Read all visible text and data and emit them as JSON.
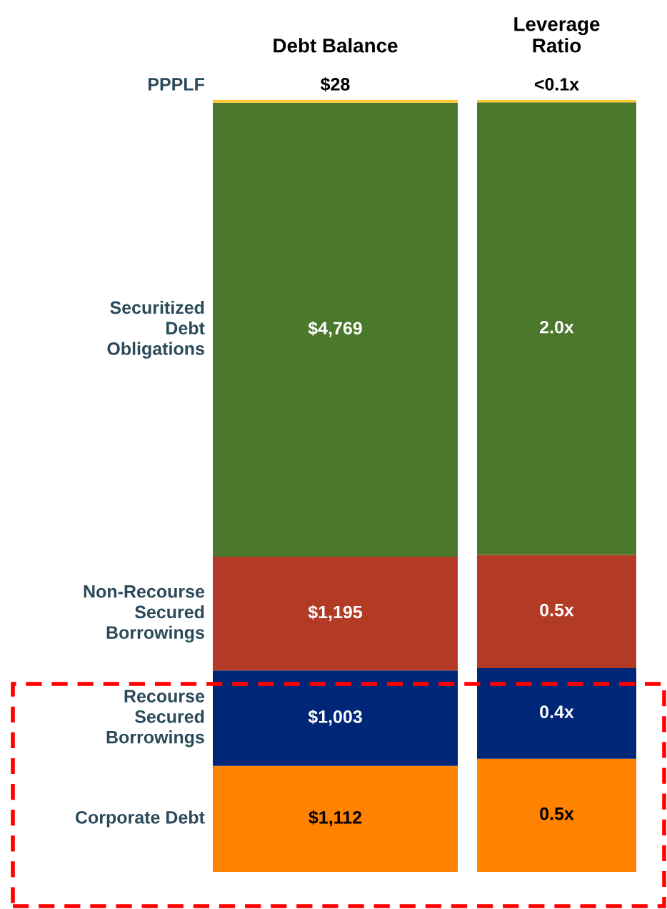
{
  "chart_data": [
    {
      "type": "bar",
      "title": "Debt Balance",
      "stacked": true,
      "categories": [
        null
      ],
      "legend": false,
      "series": [
        {
          "name": "Corporate Debt",
          "color": "#ff8200",
          "values": [
            1112
          ],
          "value_labels": [
            "$1,112"
          ]
        },
        {
          "name": "Recourse\nSecured\nBorrowings",
          "color": "#002677",
          "values": [
            1003
          ],
          "value_labels": [
            "$1,003"
          ]
        },
        {
          "name": "Non-Recourse\nSecured\nBorrowings",
          "color": "#b33b26",
          "values": [
            1195
          ],
          "value_labels": [
            "$1,195"
          ]
        },
        {
          "name": "Securitized\nDebt\nObligations",
          "color": "#4c782b",
          "values": [
            4769
          ],
          "value_labels": [
            "$4,769"
          ]
        },
        {
          "name": "PPPLF",
          "color": "#ffc72c",
          "values": [
            28
          ],
          "value_labels": [
            "$28"
          ]
        }
      ]
    },
    {
      "type": "bar",
      "title": "Leverage\nRatio",
      "stacked": true,
      "categories": [
        null
      ],
      "legend": false,
      "series": [
        {
          "color": "#ff8200",
          "values": [
            0.5
          ],
          "value_labels": [
            "0.5x"
          ]
        },
        {
          "color": "#002677",
          "values": [
            0.4
          ],
          "value_labels": [
            "0.4x"
          ]
        },
        {
          "color": "#b33b26",
          "values": [
            0.5
          ],
          "value_labels": [
            "0.5x"
          ]
        },
        {
          "color": "#4c782b",
          "values": [
            2.0
          ],
          "value_labels": [
            "2.0x"
          ]
        },
        {
          "color": "#ffc72c",
          "values": [
            0.01
          ],
          "value_labels": [
            "<0.1x"
          ]
        }
      ]
    }
  ]
}
